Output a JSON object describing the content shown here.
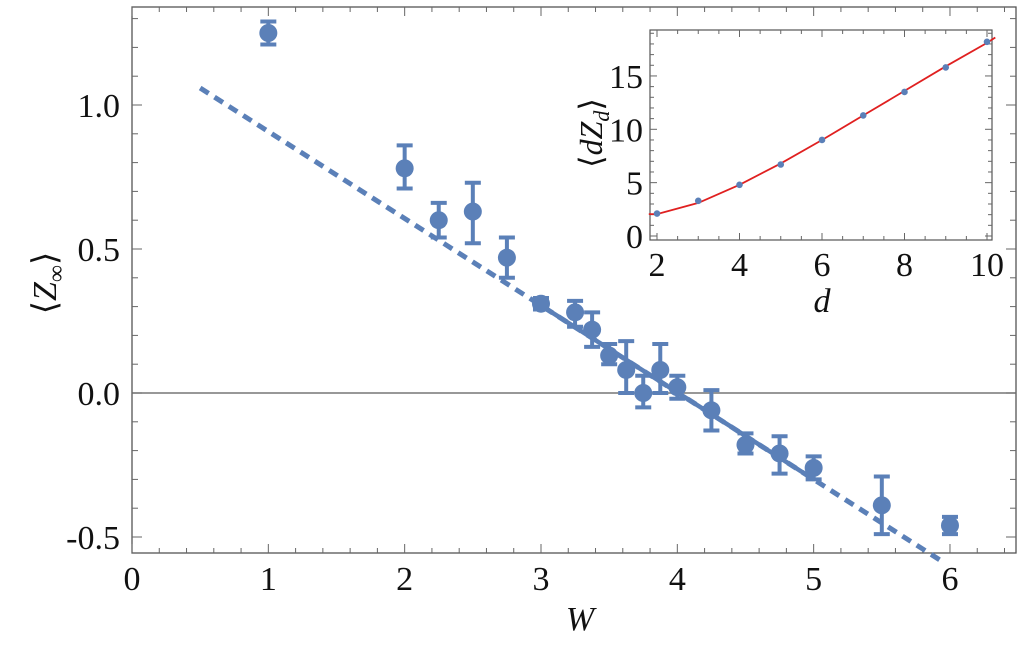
{
  "chart_data": [
    {
      "type": "scatter",
      "title": "",
      "xlabel": "W",
      "ylabel": "⟨Z∞⟩",
      "xlim": [
        0,
        6.5
      ],
      "ylim": [
        -0.556,
        1.34
      ],
      "xticks": [
        0,
        1,
        2,
        3,
        4,
        5,
        6
      ],
      "xtick_labels": [
        "0",
        "1",
        "2",
        "3",
        "4",
        "5",
        "6"
      ],
      "yticks": [
        -0.5,
        0.0,
        0.5,
        1.0
      ],
      "ytick_labels": [
        "-0.5",
        "0.0",
        "0.5",
        "1.0"
      ],
      "grid": false,
      "reference_line": {
        "y": 0.0,
        "color": "#777777"
      },
      "series": [
        {
          "name": "data",
          "color": "#5b80b8",
          "marker": "circle",
          "x": [
            1,
            2,
            2.25,
            2.5,
            2.75,
            3,
            3.25,
            3.375,
            3.5,
            3.625,
            3.75,
            3.875,
            4,
            4.25,
            4.5,
            4.75,
            5,
            5.5,
            6
          ],
          "y": [
            1.25,
            0.78,
            0.6,
            0.63,
            0.47,
            0.31,
            0.28,
            0.22,
            0.13,
            0.08,
            0.0,
            0.08,
            0.02,
            -0.06,
            -0.18,
            -0.21,
            -0.26,
            -0.39,
            -0.46
          ],
          "yerr_low": [
            1.21,
            0.71,
            0.54,
            0.52,
            0.4,
            0.29,
            0.23,
            0.16,
            0.1,
            0.0,
            -0.05,
            0.0,
            -0.02,
            -0.13,
            -0.21,
            -0.28,
            -0.3,
            -0.49,
            -0.49
          ],
          "yerr_high": [
            1.29,
            0.86,
            0.66,
            0.73,
            0.54,
            0.33,
            0.32,
            0.28,
            0.17,
            0.18,
            0.06,
            0.17,
            0.06,
            0.01,
            -0.14,
            -0.15,
            -0.22,
            -0.29,
            -0.43
          ]
        },
        {
          "name": "linear fit (solid)",
          "color": "#5b80b8",
          "style": "solid",
          "x": [
            3.0,
            5.0
          ],
          "y": [
            0.304,
            -0.3
          ]
        },
        {
          "name": "linear fit extrapolation (dashed)",
          "color": "#5b80b8",
          "style": "dashed",
          "x": [
            0.5,
            5.95
          ],
          "y": [
            1.059,
            -0.587
          ]
        }
      ]
    },
    {
      "type": "scatter",
      "title": "",
      "inset": true,
      "xlabel": "d",
      "ylabel": "⟨dZ_d⟩",
      "xlim": [
        1.8,
        10.2
      ],
      "ylim": [
        -0.4,
        19.3
      ],
      "xticks": [
        2,
        4,
        6,
        8,
        10
      ],
      "xtick_labels": [
        "2",
        "4",
        "6",
        "8",
        "10"
      ],
      "yticks": [
        0,
        5,
        10,
        15
      ],
      "ytick_labels": [
        "0",
        "5",
        "10",
        "15"
      ],
      "grid": false,
      "series": [
        {
          "name": "data",
          "color": "#5b80b8",
          "marker": "circle",
          "x": [
            2,
            3,
            4,
            5,
            6,
            7,
            8,
            9,
            10
          ],
          "y": [
            2.1,
            3.3,
            4.8,
            6.7,
            9.0,
            11.3,
            13.5,
            15.8,
            18.2
          ]
        },
        {
          "name": "fit",
          "color": "#e02020",
          "style": "solid",
          "x": [
            1.8,
            2,
            3,
            4,
            5,
            6,
            7,
            8,
            9,
            10,
            10.2
          ],
          "y": [
            2.05,
            2.05,
            3.1,
            4.8,
            6.8,
            9.0,
            11.3,
            13.6,
            15.9,
            18.1,
            18.6
          ]
        }
      ]
    }
  ],
  "main": {
    "xlabel": "W",
    "ylabel_main": "Z",
    "ylabel_sub": "∞",
    "xtick_labels": [
      "0",
      "1",
      "2",
      "3",
      "4",
      "5",
      "6"
    ],
    "ytick_labels": [
      "-0.5",
      "0.0",
      "0.5",
      "1.0"
    ]
  },
  "inset": {
    "xlabel": "d",
    "ylabel_prefix": "d",
    "ylabel_main": "Z",
    "ylabel_sub": "d",
    "xtick_labels": [
      "2",
      "4",
      "6",
      "8",
      "10"
    ],
    "ytick_labels": [
      "0",
      "5",
      "10",
      "15"
    ]
  },
  "colors": {
    "data": "#5b80b8",
    "fit_inset": "#e02020",
    "axis": "#555555",
    "zero_line": "#777777"
  }
}
